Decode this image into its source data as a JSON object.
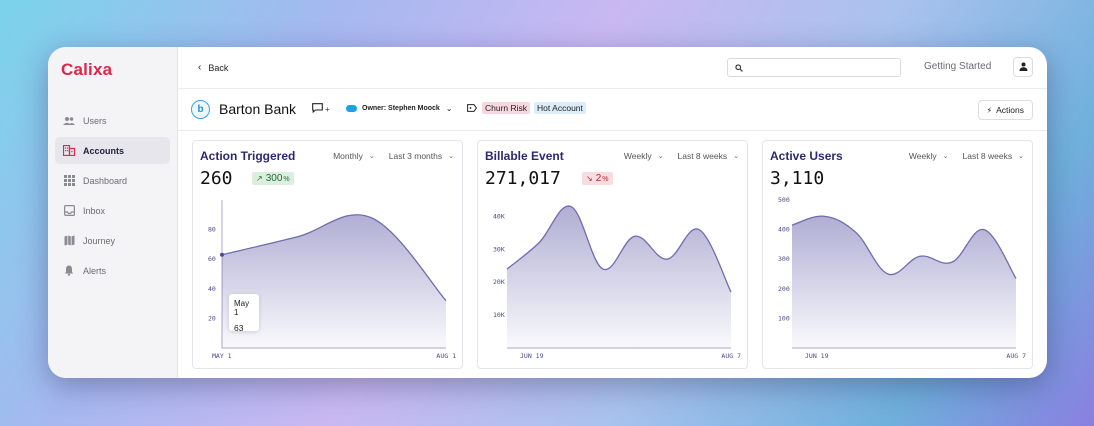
{
  "app": {
    "name": "Calixa"
  },
  "sidebar": {
    "items": [
      {
        "label": "Users",
        "icon": "users-icon",
        "active": false
      },
      {
        "label": "Accounts",
        "icon": "accounts-icon",
        "active": true
      },
      {
        "label": "Dashboard",
        "icon": "dashboard-icon",
        "active": false
      },
      {
        "label": "Inbox",
        "icon": "inbox-icon",
        "active": false
      },
      {
        "label": "Journey",
        "icon": "journey-icon",
        "active": false
      },
      {
        "label": "Alerts",
        "icon": "bell-icon",
        "active": false
      }
    ]
  },
  "topbar": {
    "back_label": "Back",
    "search_placeholder": "",
    "getting_started": "Getting Started"
  },
  "account": {
    "logo_letter": "b",
    "name": "Barton Bank",
    "comment_suffix": "+",
    "owner": "Owner: Stephen Moock",
    "tags": [
      "Churn Risk",
      "Hot Account"
    ],
    "actions_label": "Actions"
  },
  "colors": {
    "brand": "#e0264c",
    "accent": "#2b2a6e",
    "chart_line": "#6f6cb0"
  },
  "cards": [
    {
      "title": "Action Triggered",
      "period": "Monthly",
      "range": "Last 3 months",
      "value": "260",
      "change": "300",
      "change_unit": "%",
      "direction": "up",
      "tooltip": {
        "date": "May 1",
        "value": "63"
      }
    },
    {
      "title": "Billable Event",
      "period": "Weekly",
      "range": "Last 8 weeks",
      "value": "271,017",
      "change": "2",
      "change_unit": "%",
      "direction": "down"
    },
    {
      "title": "Active Users",
      "period": "Weekly",
      "range": "Last 8 weeks",
      "value": "3,110"
    }
  ],
  "chart_data": [
    {
      "type": "area",
      "x": [
        "May 1",
        "Jun 1",
        "Jul 1",
        "Aug 1"
      ],
      "values": [
        63,
        75,
        88,
        32
      ],
      "yticks": [
        20,
        40,
        60,
        80
      ],
      "ylim": [
        0,
        100
      ],
      "xtick_labels": [
        "MAY 1",
        "AUG 1"
      ]
    },
    {
      "type": "area",
      "x": [
        "Jun 19",
        "Jun 26",
        "Jul 3",
        "Jul 10",
        "Jul 17",
        "Jul 24",
        "Jul 31",
        "Aug 7"
      ],
      "values": [
        24000,
        32000,
        43000,
        24000,
        34000,
        27000,
        36000,
        17000
      ],
      "yticks": [
        10000,
        20000,
        30000,
        40000
      ],
      "ytick_labels": [
        "10K",
        "20K",
        "30K",
        "40K"
      ],
      "ylim": [
        0,
        45000
      ],
      "xtick_labels": [
        "JUN 19",
        "AUG 7"
      ]
    },
    {
      "type": "area",
      "x": [
        "Jun 19",
        "Jun 26",
        "Jul 3",
        "Jul 10",
        "Jul 17",
        "Jul 24",
        "Jul 31",
        "Aug 7"
      ],
      "values": [
        415,
        445,
        390,
        250,
        310,
        290,
        400,
        235
      ],
      "yticks": [
        100,
        200,
        300,
        400,
        500
      ],
      "ylim": [
        0,
        500
      ],
      "xtick_labels": [
        "JUN 19",
        "AUG 7"
      ]
    }
  ]
}
